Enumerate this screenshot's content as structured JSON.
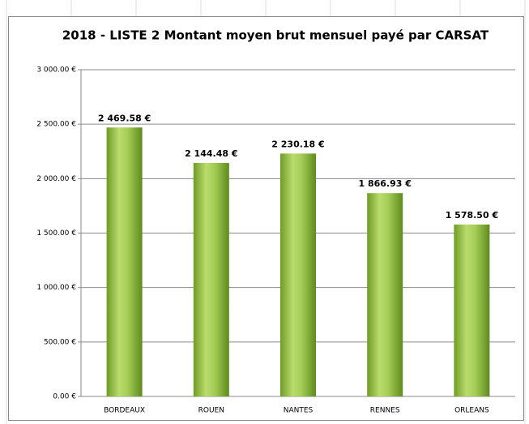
{
  "chart_data": {
    "type": "bar",
    "title": "2018 - LISTE 2 Montant moyen brut mensuel payé par CARSAT",
    "categories": [
      "BORDEAUX",
      "ROUEN",
      "NANTES",
      "RENNES",
      "ORLEANS"
    ],
    "values": [
      2469.58,
      2144.48,
      2230.18,
      1866.93,
      1578.5
    ],
    "value_labels": [
      "2 469.58 €",
      "2 144.48 €",
      "2 230.18 €",
      "1 866.93 €",
      "1 578.50 €"
    ],
    "color": "#8dbb3c",
    "ylim": [
      0,
      3000
    ],
    "yticks": [
      {
        "value": 0,
        "label": "0.00 €"
      },
      {
        "value": 500,
        "label": "500.00 €"
      },
      {
        "value": 1000,
        "label": "1 000.00 €"
      },
      {
        "value": 1500,
        "label": "1 500.00 €"
      },
      {
        "value": 2000,
        "label": "2 000.00 €"
      },
      {
        "value": 2500,
        "label": "2 500.00 €"
      },
      {
        "value": 3000,
        "label": "3 000.00 €"
      }
    ],
    "grid": true
  }
}
